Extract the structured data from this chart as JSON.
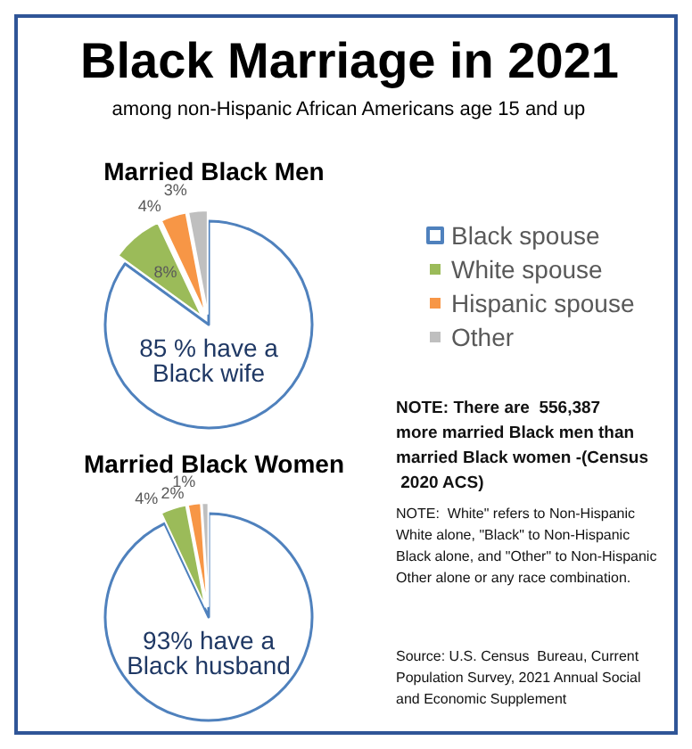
{
  "chart_data": [
    {
      "type": "other",
      "title": "Black Marriage in 2021",
      "subtitle": "among non-Hispanic African Americans age 15 and up",
      "annotations": [
        "NOTE: There are  556,387 more married Black men than married Black women -(Census 2020 ACS)",
        "NOTE:  White\" refers to Non-Hispanic White alone, \"Black\" to Non-Hispanic Black alone, and \"Other\" to Non-Hispanic Other alone or any race combination.",
        "Source: U.S. Census  Bureau, Current Population Survey, 2021 Annual Social and Economic Supplement"
      ]
    },
    {
      "type": "pie",
      "title": "Married Black Men",
      "categories": [
        "Black spouse",
        "White spouse",
        "Hispanic spouse",
        "Other"
      ],
      "values": [
        85,
        8,
        4,
        3
      ],
      "colors": [
        "#ffffff",
        "#9bbb59",
        "#f79646",
        "#bfbfbf"
      ],
      "value_labels": [
        "85 % have a Black wife",
        "8%",
        "4%",
        "3%"
      ],
      "legend": "right"
    },
    {
      "type": "pie",
      "title": "Married Black Women",
      "categories": [
        null,
        null,
        null,
        null
      ],
      "values": [
        93,
        4,
        2,
        1
      ],
      "colors": [
        "#ffffff",
        "#9bbb59",
        "#f79646",
        "#bfbfbf"
      ],
      "value_labels": [
        "93% have a Black husband",
        "4%",
        "2%",
        "1%"
      ],
      "legend": false
    }
  ]
}
